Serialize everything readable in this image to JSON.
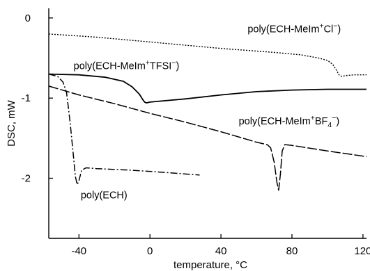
{
  "chart_data": {
    "type": "line",
    "xlabel": "temperature, °C",
    "ylabel": "DSC, mW",
    "xlim": [
      -57,
      122
    ],
    "ylim": [
      -2.75,
      0.12
    ],
    "x_ticks": [
      -40,
      0,
      40,
      80,
      120
    ],
    "y_ticks": [
      0,
      -1,
      -2
    ],
    "series": [
      {
        "name": "poly(ECH-MeIm⁺Cl⁻)",
        "line_style": "dotted",
        "points": [
          [
            -57,
            -0.2
          ],
          [
            -30,
            -0.24
          ],
          [
            0,
            -0.3
          ],
          [
            40,
            -0.38
          ],
          [
            70,
            -0.43
          ],
          [
            85,
            -0.46
          ],
          [
            95,
            -0.5
          ],
          [
            100,
            -0.53
          ],
          [
            103,
            -0.58
          ],
          [
            105,
            -0.65
          ],
          [
            106.5,
            -0.71
          ],
          [
            108,
            -0.73
          ],
          [
            110,
            -0.72
          ],
          [
            115,
            -0.71
          ],
          [
            122,
            -0.71
          ]
        ]
      },
      {
        "name": "poly(ECH-MeIm⁺TFSI⁻)",
        "line_style": "solid",
        "points": [
          [
            -57,
            -0.7
          ],
          [
            -40,
            -0.71
          ],
          [
            -25,
            -0.74
          ],
          [
            -15,
            -0.79
          ],
          [
            -10,
            -0.86
          ],
          [
            -6,
            -0.95
          ],
          [
            -4,
            -1.02
          ],
          [
            -3,
            -1.05
          ],
          [
            -2,
            -1.06
          ],
          [
            0,
            -1.05
          ],
          [
            20,
            -1.01
          ],
          [
            40,
            -0.96
          ],
          [
            60,
            -0.92
          ],
          [
            80,
            -0.9
          ],
          [
            100,
            -0.89
          ],
          [
            122,
            -0.89
          ]
        ]
      },
      {
        "name": "poly(ECH-MeIm⁺BF₄⁻)",
        "line_style": "long-dash",
        "points": [
          [
            -57,
            -0.85
          ],
          [
            -40,
            -0.96
          ],
          [
            -20,
            -1.07
          ],
          [
            0,
            -1.19
          ],
          [
            20,
            -1.3
          ],
          [
            40,
            -1.42
          ],
          [
            60,
            -1.55
          ],
          [
            66,
            -1.58
          ],
          [
            68,
            -1.62
          ],
          [
            70,
            -1.8
          ],
          [
            71.5,
            -2.05
          ],
          [
            72.5,
            -2.15
          ],
          [
            73.5,
            -1.95
          ],
          [
            74.5,
            -1.66
          ],
          [
            76,
            -1.58
          ],
          [
            80,
            -1.59
          ],
          [
            100,
            -1.66
          ],
          [
            122,
            -1.73
          ]
        ]
      },
      {
        "name": "poly(ECH)",
        "line_style": "dash-dot",
        "points": [
          [
            -57,
            -0.7
          ],
          [
            -52,
            -0.73
          ],
          [
            -49,
            -0.8
          ],
          [
            -47,
            -0.93
          ],
          [
            -45,
            -1.3
          ],
          [
            -43,
            -1.75
          ],
          [
            -42,
            -1.98
          ],
          [
            -41,
            -2.08
          ],
          [
            -40,
            -2.03
          ],
          [
            -38.5,
            -1.9
          ],
          [
            -36,
            -1.87
          ],
          [
            -30,
            -1.88
          ],
          [
            -10,
            -1.9
          ],
          [
            10,
            -1.93
          ],
          [
            28,
            -1.96
          ]
        ]
      }
    ],
    "annotations": [
      {
        "series": 0,
        "label_x": 55,
        "label_y": -0.18,
        "parts": [
          {
            "t": "poly(ECH-MeIm"
          },
          {
            "t": "+",
            "s": "sup"
          },
          {
            "t": "Cl"
          },
          {
            "t": "−",
            "s": "sup"
          },
          {
            "t": ")"
          }
        ]
      },
      {
        "series": 1,
        "label_x": -43,
        "label_y": -0.64,
        "parts": [
          {
            "t": "poly(ECH-MeIm"
          },
          {
            "t": "+",
            "s": "sup"
          },
          {
            "t": "TFSI"
          },
          {
            "t": "−",
            "s": "sup"
          },
          {
            "t": ")"
          }
        ]
      },
      {
        "series": 2,
        "label_x": 50,
        "label_y": -1.33,
        "parts": [
          {
            "t": "poly(ECH-MeIm"
          },
          {
            "t": "+",
            "s": "sup"
          },
          {
            "t": "BF"
          },
          {
            "t": "4",
            "s": "sub"
          },
          {
            "t": "−",
            "s": "sup"
          },
          {
            "t": ")"
          }
        ]
      },
      {
        "series": 3,
        "label_x": -39,
        "label_y": -2.25,
        "parts": [
          {
            "t": "poly(ECH)"
          }
        ]
      }
    ]
  }
}
